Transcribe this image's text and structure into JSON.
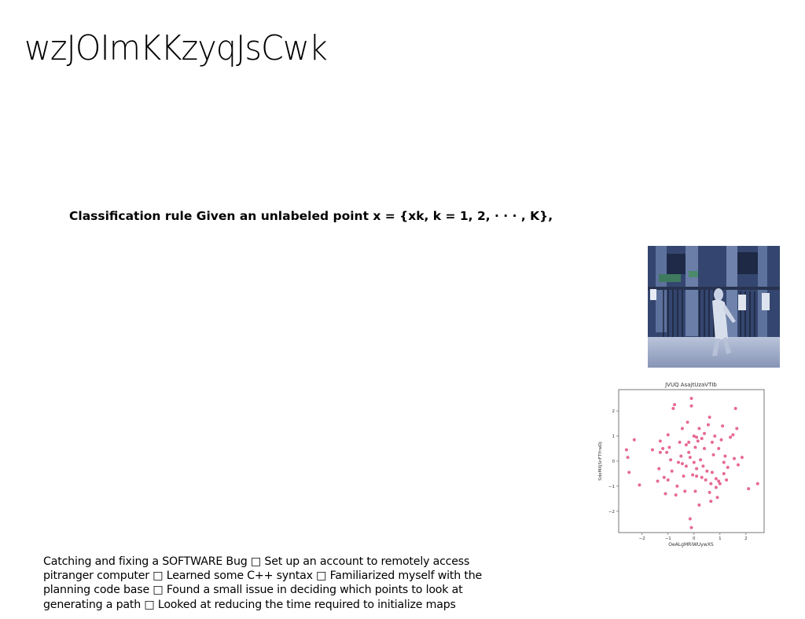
{
  "title": "wzJOImKKzyqJsCwk",
  "rule_text": "Classification rule Given an unlabeled point x = {xk, k = 1, 2, · · · , K},",
  "notes_text": "Catching and fixing a SOFTWARE Bug □ Set up an account to remotely access pitranger computer □ Learned some C++ syntax □ Familiarized myself with the planning code base □ Found a small issue in deciding which points to look at generating a path □ Looked at reducing the time required to initialize maps",
  "chart_data": {
    "type": "scatter",
    "title": "JVUQ AsajtUzaVTIb",
    "xlabel": "OeALgMRiWUywXS",
    "ylabel": "SdoMXjSnFTYrwDj",
    "xlim": [
      -2.9,
      2.7
    ],
    "ylim": [
      -2.85,
      2.85
    ],
    "xticks": [
      "−2",
      "−1",
      "0",
      "1",
      "2"
    ],
    "xtick_values": [
      -2,
      -1,
      0,
      1,
      2
    ],
    "yticks": [
      "−2",
      "−1",
      "0",
      "1",
      "2"
    ],
    "ytick_values": [
      -2,
      -1,
      0,
      1,
      2
    ],
    "grid": false,
    "point_color": "#e0457b",
    "points": [
      [
        -2.6,
        0.45
      ],
      [
        -2.55,
        0.15
      ],
      [
        -2.5,
        -0.45
      ],
      [
        -2.3,
        0.85
      ],
      [
        -2.1,
        -0.95
      ],
      [
        -1.6,
        0.45
      ],
      [
        -1.4,
        -0.8
      ],
      [
        -1.35,
        -0.3
      ],
      [
        -1.3,
        0.8
      ],
      [
        -1.2,
        0.5
      ],
      [
        -1.15,
        -0.65
      ],
      [
        -1.1,
        -1.3
      ],
      [
        -1.05,
        0.35
      ],
      [
        -1.0,
        1.05
      ],
      [
        -1.0,
        -0.75
      ],
      [
        -0.95,
        0.55
      ],
      [
        -0.85,
        -0.4
      ],
      [
        -0.8,
        2.1
      ],
      [
        -0.75,
        2.25
      ],
      [
        -0.7,
        -1.35
      ],
      [
        -0.65,
        -1.0
      ],
      [
        -0.6,
        -0.05
      ],
      [
        -0.55,
        0.75
      ],
      [
        -0.5,
        0.2
      ],
      [
        -0.45,
        1.3
      ],
      [
        -0.4,
        -0.6
      ],
      [
        -0.35,
        -1.2
      ],
      [
        -0.3,
        0.65
      ],
      [
        -0.3,
        -0.2
      ],
      [
        -0.25,
        1.55
      ],
      [
        -0.2,
        0.75
      ],
      [
        -0.15,
        0.15
      ],
      [
        -0.1,
        2.5
      ],
      [
        -0.1,
        2.2
      ],
      [
        -0.05,
        -0.55
      ],
      [
        0.0,
        1.0
      ],
      [
        0.0,
        -0.05
      ],
      [
        0.05,
        0.55
      ],
      [
        0.05,
        -1.2
      ],
      [
        0.1,
        -0.3
      ],
      [
        0.1,
        -0.6
      ],
      [
        0.15,
        0.8
      ],
      [
        0.2,
        1.3
      ],
      [
        0.2,
        -1.75
      ],
      [
        0.25,
        0.05
      ],
      [
        0.3,
        0.9
      ],
      [
        0.35,
        -0.2
      ],
      [
        0.4,
        0.5
      ],
      [
        0.45,
        -0.75
      ],
      [
        0.5,
        -0.4
      ],
      [
        0.55,
        1.45
      ],
      [
        0.6,
        1.75
      ],
      [
        0.6,
        -1.25
      ],
      [
        0.65,
        -1.6
      ],
      [
        0.7,
        -0.45
      ],
      [
        0.75,
        0.25
      ],
      [
        0.8,
        1.0
      ],
      [
        0.85,
        -0.7
      ],
      [
        0.9,
        -1.45
      ],
      [
        0.95,
        0.5
      ],
      [
        1.0,
        -0.9
      ],
      [
        1.05,
        0.85
      ],
      [
        1.1,
        1.4
      ],
      [
        1.15,
        -0.5
      ],
      [
        1.2,
        0.2
      ],
      [
        1.25,
        -0.75
      ],
      [
        1.3,
        -0.25
      ],
      [
        1.4,
        0.95
      ],
      [
        1.5,
        1.05
      ],
      [
        1.55,
        0.1
      ],
      [
        1.6,
        2.1
      ],
      [
        1.65,
        1.3
      ],
      [
        1.7,
        -0.15
      ],
      [
        1.85,
        0.15
      ],
      [
        2.1,
        -1.1
      ],
      [
        2.45,
        -0.9
      ],
      [
        -0.15,
        -2.3
      ],
      [
        -0.1,
        -2.65
      ],
      [
        -1.3,
        0.35
      ],
      [
        0.95,
        -0.8
      ],
      [
        0.3,
        -0.65
      ],
      [
        -0.45,
        -0.1
      ],
      [
        0.7,
        0.75
      ],
      [
        0.1,
        0.95
      ],
      [
        -0.2,
        0.35
      ],
      [
        0.85,
        -1.05
      ],
      [
        1.15,
        -0.05
      ],
      [
        -0.9,
        0.05
      ],
      [
        0.4,
        1.1
      ],
      [
        0.65,
        -0.9
      ]
    ]
  }
}
